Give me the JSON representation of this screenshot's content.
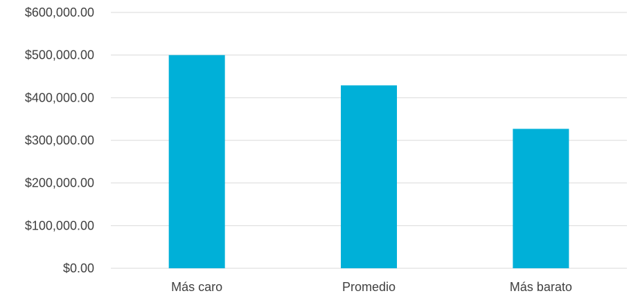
{
  "chart_data": {
    "type": "bar",
    "categories": [
      "Más caro",
      "Promedio",
      "Más barato"
    ],
    "values": [
      500000,
      429000,
      327000
    ],
    "title": "",
    "xlabel": "",
    "ylabel": "",
    "ylim": [
      0,
      600000
    ],
    "yticks": [
      0,
      100000,
      200000,
      300000,
      400000,
      500000,
      600000
    ],
    "ytick_labels": [
      "$0.00",
      "$100,000.00",
      "$200,000.00",
      "$300,000.00",
      "$400,000.00",
      "$500,000.00",
      "$600,000.00"
    ],
    "grid": true,
    "legend": "none",
    "colors": {
      "bar": "#00B0D8",
      "grid": "#D9D9D9",
      "text": "#404040"
    }
  }
}
